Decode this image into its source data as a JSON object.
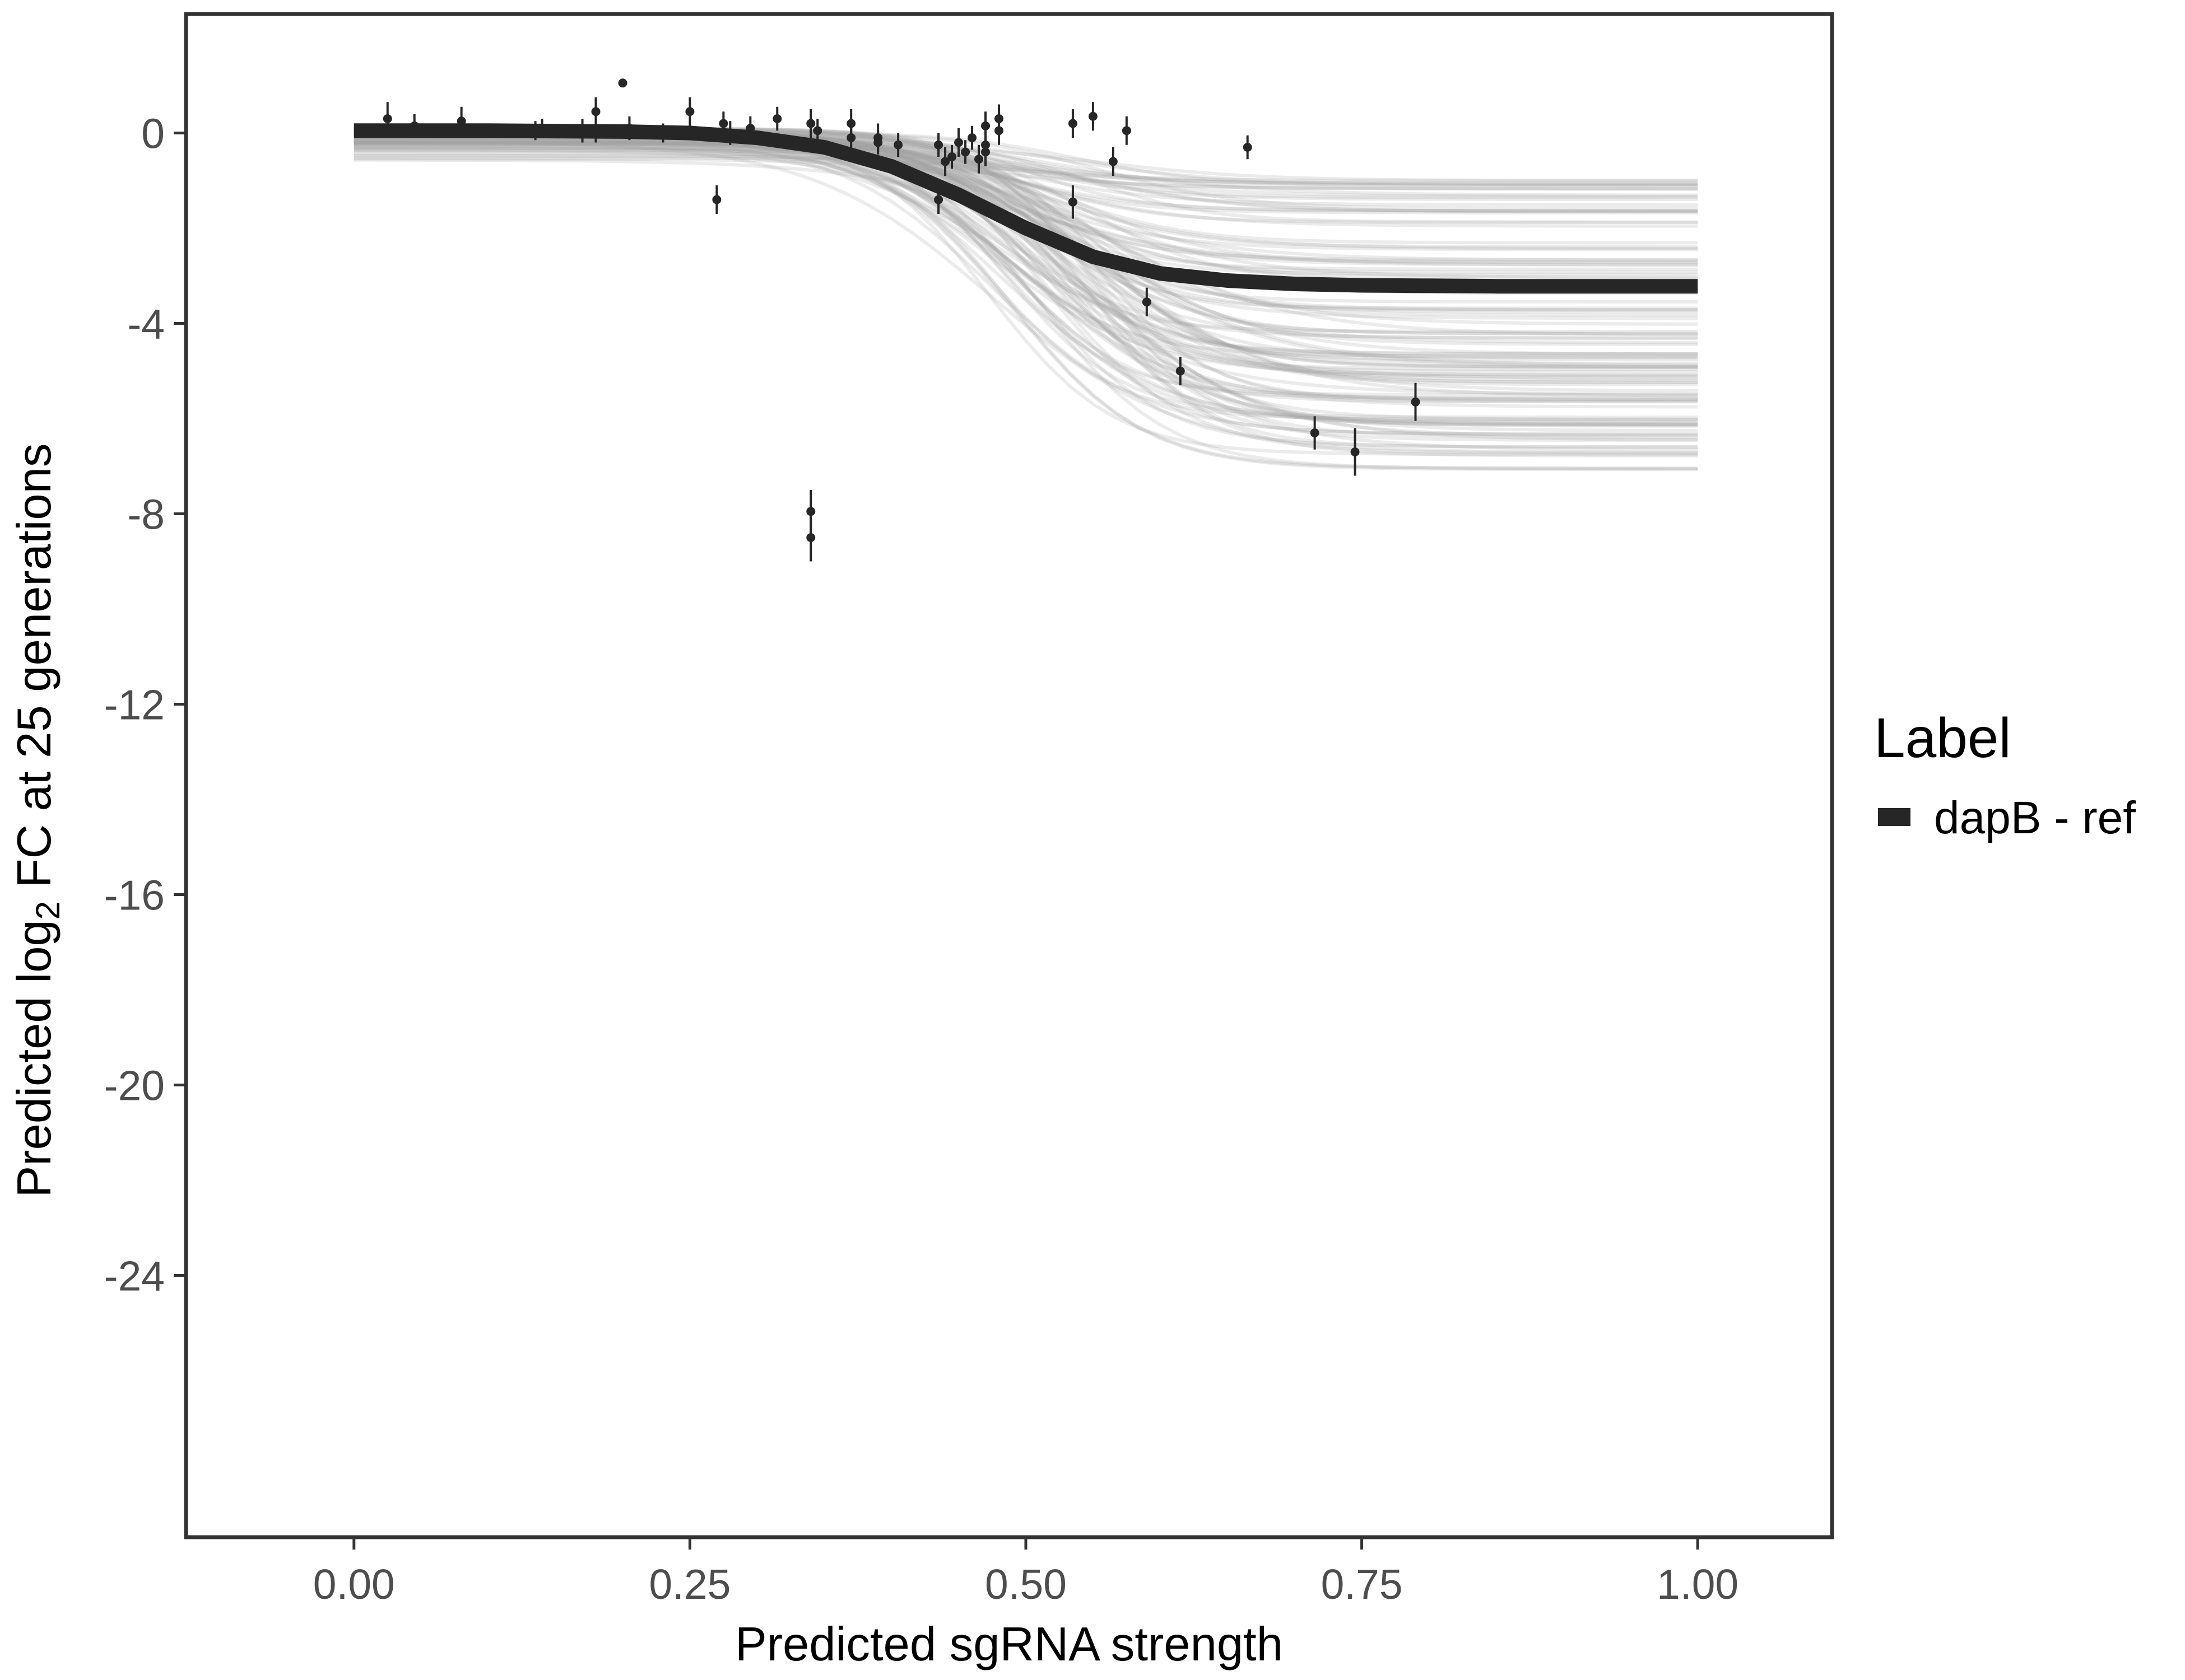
{
  "chart_data": {
    "type": "line",
    "xlabel": "Predicted sgRNA strength",
    "ylabel": {
      "prefix": "Predicted  log",
      "subscript": "2",
      "suffix": " FC at 25 generations"
    },
    "xlim": [
      -0.125,
      1.1
    ],
    "ylim": [
      -29.5,
      2.5
    ],
    "xticks": [
      0.0,
      0.25,
      0.5,
      0.75,
      1.0
    ],
    "xtick_labels": [
      "0.00",
      "0.25",
      "0.50",
      "0.75",
      "1.00"
    ],
    "yticks": [
      0,
      -4,
      -8,
      -12,
      -16,
      -20,
      -24
    ],
    "ytick_labels": [
      "0",
      "-4",
      "-8",
      "-12",
      "-16",
      "-20",
      "-24"
    ],
    "grid": false,
    "legend": {
      "title": "Label",
      "position": "right",
      "entries": [
        {
          "label": "dapB - ref",
          "color": "#262626"
        }
      ]
    },
    "series": [
      {
        "name": "dapB - ref",
        "kind": "fit",
        "color": "#262626",
        "x": [
          0.0,
          0.05,
          0.1,
          0.15,
          0.2,
          0.25,
          0.3,
          0.35,
          0.4,
          0.45,
          0.5,
          0.55,
          0.6,
          0.65,
          0.7,
          0.75,
          0.8,
          0.85,
          0.9,
          0.95,
          1.0
        ],
        "y": [
          0.05,
          0.05,
          0.05,
          0.04,
          0.03,
          0.0,
          -0.1,
          -0.3,
          -0.7,
          -1.3,
          -2.0,
          -2.6,
          -2.95,
          -3.1,
          -3.17,
          -3.2,
          -3.21,
          -3.22,
          -3.22,
          -3.22,
          -3.22
        ]
      }
    ],
    "posterior_band": {
      "color": "#a6a6a6",
      "draws": 120,
      "midpoint_range": [
        0.47,
        0.56
      ],
      "plateau_range": [
        -7.1,
        -1.0
      ],
      "start_range": [
        -0.75,
        0.1
      ]
    },
    "points": [
      {
        "x": 0.025,
        "y": 0.3,
        "err": 0.35
      },
      {
        "x": 0.045,
        "y": 0.15,
        "err": 0.25
      },
      {
        "x": 0.08,
        "y": 0.25,
        "err": 0.3
      },
      {
        "x": 0.135,
        "y": 0.05,
        "err": 0.2
      },
      {
        "x": 0.14,
        "y": 0.1,
        "err": 0.2
      },
      {
        "x": 0.17,
        "y": 0.05,
        "err": 0.25
      },
      {
        "x": 0.18,
        "y": 0.1,
        "err": 0.3
      },
      {
        "x": 0.18,
        "y": 0.45,
        "err": 0.3
      },
      {
        "x": 0.2,
        "y": 1.05,
        "err": 0.05
      },
      {
        "x": 0.205,
        "y": 0.1,
        "err": 0.25
      },
      {
        "x": 0.23,
        "y": 0.0,
        "err": 0.2
      },
      {
        "x": 0.25,
        "y": 0.45,
        "err": 0.3
      },
      {
        "x": 0.27,
        "y": -1.4,
        "err": 0.3
      },
      {
        "x": 0.275,
        "y": 0.2,
        "err": 0.25
      },
      {
        "x": 0.28,
        "y": 0.0,
        "err": 0.25
      },
      {
        "x": 0.295,
        "y": 0.1,
        "err": 0.25
      },
      {
        "x": 0.315,
        "y": 0.3,
        "err": 0.25
      },
      {
        "x": 0.34,
        "y": 0.2,
        "err": 0.3
      },
      {
        "x": 0.34,
        "y": -7.95,
        "err": 0.45
      },
      {
        "x": 0.34,
        "y": -8.5,
        "err": 0.5
      },
      {
        "x": 0.345,
        "y": 0.05,
        "err": 0.25
      },
      {
        "x": 0.37,
        "y": 0.2,
        "err": 0.3
      },
      {
        "x": 0.37,
        "y": -0.1,
        "err": 0.3
      },
      {
        "x": 0.39,
        "y": -0.1,
        "err": 0.3
      },
      {
        "x": 0.39,
        "y": -0.2,
        "err": 0.25
      },
      {
        "x": 0.405,
        "y": -0.25,
        "err": 0.25
      },
      {
        "x": 0.435,
        "y": -1.4,
        "err": 0.3
      },
      {
        "x": 0.435,
        "y": -0.25,
        "err": 0.25
      },
      {
        "x": 0.44,
        "y": -0.6,
        "err": 0.3
      },
      {
        "x": 0.445,
        "y": -0.5,
        "err": 0.25
      },
      {
        "x": 0.45,
        "y": -0.2,
        "err": 0.3
      },
      {
        "x": 0.455,
        "y": -0.4,
        "err": 0.25
      },
      {
        "x": 0.46,
        "y": -0.1,
        "err": 0.25
      },
      {
        "x": 0.465,
        "y": -0.55,
        "err": 0.3
      },
      {
        "x": 0.47,
        "y": -0.25,
        "err": 0.3
      },
      {
        "x": 0.47,
        "y": -0.4,
        "err": 0.3
      },
      {
        "x": 0.47,
        "y": 0.15,
        "err": 0.3
      },
      {
        "x": 0.48,
        "y": 0.05,
        "err": 0.3
      },
      {
        "x": 0.48,
        "y": 0.3,
        "err": 0.3
      },
      {
        "x": 0.535,
        "y": 0.2,
        "err": 0.3
      },
      {
        "x": 0.535,
        "y": -1.45,
        "err": 0.35
      },
      {
        "x": 0.55,
        "y": 0.35,
        "err": 0.3
      },
      {
        "x": 0.565,
        "y": -0.6,
        "err": 0.3
      },
      {
        "x": 0.575,
        "y": 0.05,
        "err": 0.3
      },
      {
        "x": 0.59,
        "y": -3.55,
        "err": 0.3
      },
      {
        "x": 0.615,
        "y": -5.0,
        "err": 0.3
      },
      {
        "x": 0.665,
        "y": -0.3,
        "err": 0.25
      },
      {
        "x": 0.715,
        "y": -6.3,
        "err": 0.35
      },
      {
        "x": 0.745,
        "y": -6.7,
        "err": 0.5
      },
      {
        "x": 0.79,
        "y": -5.65,
        "err": 0.4
      }
    ]
  }
}
